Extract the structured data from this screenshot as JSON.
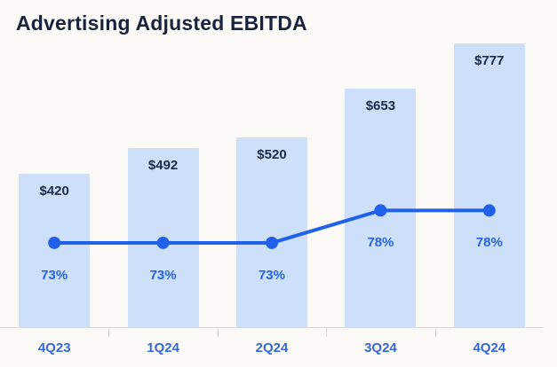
{
  "chart_data": {
    "type": "bar",
    "title": "Advertising Adjusted EBITDA",
    "categories": [
      "4Q23",
      "1Q24",
      "2Q24",
      "3Q24",
      "4Q24"
    ],
    "series": [
      {
        "type": "bar",
        "values": [
          420,
          492,
          520,
          653,
          777
        ],
        "labels": [
          "$420",
          "$492",
          "$520",
          "$653",
          "$777"
        ]
      },
      {
        "type": "line",
        "values": [
          73,
          73,
          73,
          78,
          78
        ],
        "labels": [
          "73%",
          "73%",
          "73%",
          "78%",
          "78%"
        ]
      }
    ],
    "ylim": [
      0,
      800
    ],
    "y2lim": [
      60,
      105
    ],
    "grid": false,
    "legend": "none",
    "colors": {
      "background": "#fbfaf6",
      "title": "#18243e",
      "bar": "#cddff9",
      "value_label": "#1b2a4a",
      "line": "#2161e9",
      "pct_label": "#2463e8",
      "category_label": "#3566d6",
      "axis": "#d9d9d3"
    }
  }
}
